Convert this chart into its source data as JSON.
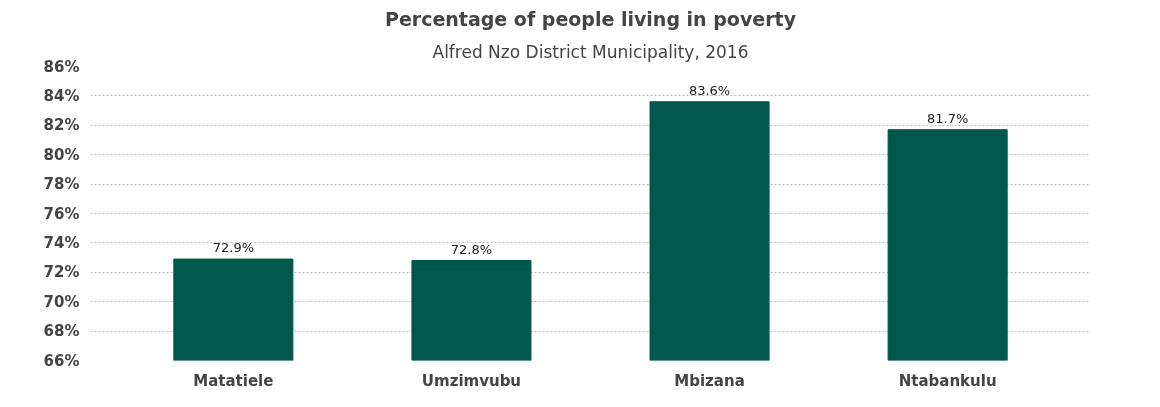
{
  "chart_data": {
    "type": "bar",
    "title": "Percentage of people living in poverty",
    "subtitle": "Alfred Nzo District Municipality, 2016",
    "categories": [
      "Matatiele",
      "Umzimvubu",
      "Mbizana",
      "Ntabankulu"
    ],
    "values": [
      72.9,
      72.8,
      83.6,
      81.7
    ],
    "value_labels": [
      "72.9%",
      "72.8%",
      "83.6%",
      "81.7%"
    ],
    "color": "#00574b",
    "ylim": [
      66,
      86
    ],
    "yticks": [
      {
        "value": 66,
        "label": "66%"
      },
      {
        "value": 68,
        "label": "68%"
      },
      {
        "value": 70,
        "label": "70%"
      },
      {
        "value": 72,
        "label": "72%"
      },
      {
        "value": 74,
        "label": "74%"
      },
      {
        "value": 76,
        "label": "76%"
      },
      {
        "value": 78,
        "label": "78%"
      },
      {
        "value": 80,
        "label": "80%"
      },
      {
        "value": 82,
        "label": "82%"
      },
      {
        "value": 84,
        "label": "84%"
      },
      {
        "value": 86,
        "label": "86%"
      }
    ],
    "grid": "y"
  }
}
